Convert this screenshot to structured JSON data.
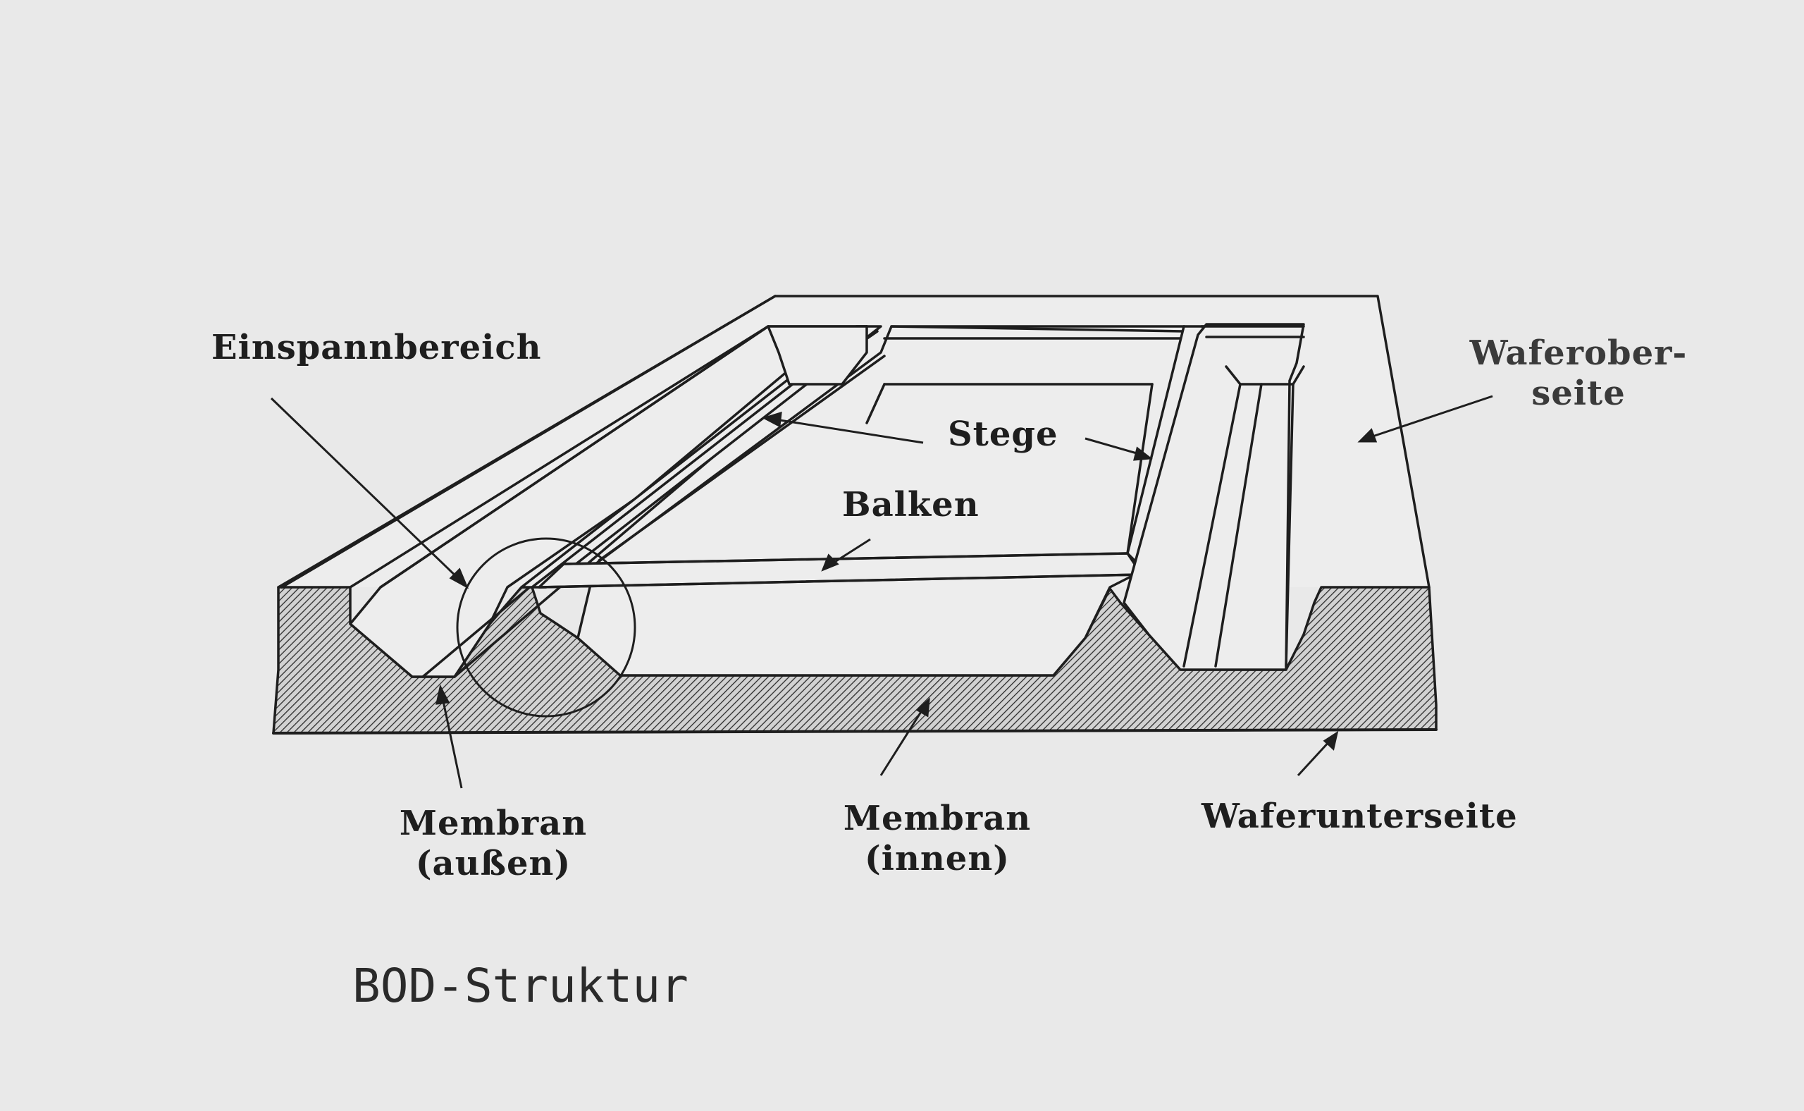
{
  "labels": {
    "einspannbereich": "Einspannbereich",
    "stege": "Stege",
    "balken": "Balken",
    "waferoberseite_1": "Waferober-",
    "waferoberseite_2": "seite",
    "membran_aussen_1": "Membran",
    "membran_aussen_2": "(außen)",
    "membran_innen_1": "Membran",
    "membran_innen_2": "(innen)",
    "waferunterseite": "Waferunterseite"
  },
  "caption": "BOD-Struktur",
  "colors": {
    "paper": "#e9e9e9",
    "ink": "#1e1e1e",
    "hatch": "#2b2b2b"
  }
}
